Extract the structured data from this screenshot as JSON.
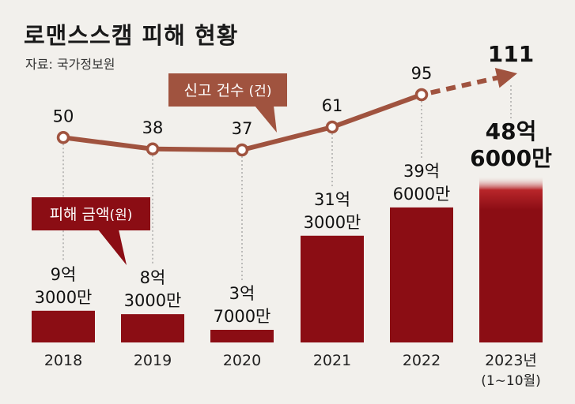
{
  "title": "로맨스스캠 피해 현황",
  "source": "자료: 국가정보원",
  "colors": {
    "background": "#f2f0ec",
    "bar": "#8b0d14",
    "bar_last_top": "#b8262a",
    "line": "#a0533f",
    "callout_line": "#a0533f",
    "callout_amount": "#8b0d14"
  },
  "callouts": {
    "count": {
      "label": "신고 건수",
      "unit": "(건)"
    },
    "amount": {
      "label": "피해 금액",
      "unit": "(원)"
    }
  },
  "chart_data": {
    "type": "bar",
    "categories": [
      "2018",
      "2019",
      "2020",
      "2021",
      "2022",
      "2023년"
    ],
    "category_notes": [
      "",
      "",
      "",
      "",
      "",
      "(1∼10월)"
    ],
    "series": [
      {
        "name": "피해 금액(원)",
        "type": "bar",
        "values": [
          930000000,
          830000000,
          370000000,
          3130000000,
          3960000000,
          4860000000
        ],
        "labels": [
          [
            "9억",
            "3000만"
          ],
          [
            "8억",
            "3000만"
          ],
          [
            "3억",
            "7000만"
          ],
          [
            "31억",
            "3000만"
          ],
          [
            "39억",
            "6000만"
          ],
          [
            "48억",
            "6000만"
          ]
        ]
      },
      {
        "name": "신고 건수(건)",
        "type": "line",
        "values": [
          50,
          38,
          37,
          61,
          95,
          111
        ],
        "labels": [
          "50",
          "38",
          "37",
          "61",
          "95",
          "111"
        ],
        "projected_last": true
      }
    ],
    "title": "로맨스스캠 피해 현황",
    "xlabel": "",
    "ylabel": ""
  }
}
